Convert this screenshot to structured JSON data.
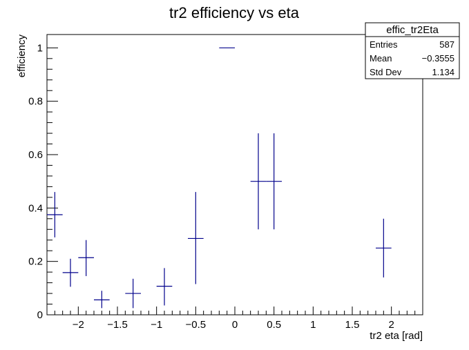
{
  "chart_data": {
    "type": "scatter",
    "title": "tr2 efficiency vs eta",
    "xlabel": "tr2 eta [rad]",
    "ylabel": "efficiency",
    "xlim": [
      -2.4,
      2.4
    ],
    "ylim": [
      0,
      1.05
    ],
    "grid": false,
    "marker_color": "#00008b",
    "x_ticks": [
      -2,
      -1.5,
      -1,
      -0.5,
      0,
      0.5,
      1,
      1.5,
      2
    ],
    "x_tick_labels": [
      "−2",
      "−1.5",
      "−1",
      "−0.5",
      "0",
      "0.5",
      "1",
      "1.5",
      "2"
    ],
    "y_ticks": [
      0,
      0.2,
      0.4,
      0.6,
      0.8,
      1
    ],
    "y_tick_labels": [
      "0",
      "0.2",
      "0.4",
      "0.6",
      "0.8",
      "1"
    ],
    "bin_half_width": 0.1,
    "points": [
      {
        "x": -2.3,
        "y": 0.375,
        "ylo": 0.29,
        "yhi": 0.46
      },
      {
        "x": -2.1,
        "y": 0.158,
        "ylo": 0.105,
        "yhi": 0.21
      },
      {
        "x": -1.9,
        "y": 0.214,
        "ylo": 0.145,
        "yhi": 0.28
      },
      {
        "x": -1.7,
        "y": 0.056,
        "ylo": 0.025,
        "yhi": 0.09
      },
      {
        "x": -1.3,
        "y": 0.08,
        "ylo": 0.025,
        "yhi": 0.135
      },
      {
        "x": -0.9,
        "y": 0.107,
        "ylo": 0.035,
        "yhi": 0.175
      },
      {
        "x": -0.5,
        "y": 0.286,
        "ylo": 0.115,
        "yhi": 0.46
      },
      {
        "x": -0.1,
        "y": 1.0,
        "ylo": 1.0,
        "yhi": 1.0
      },
      {
        "x": 0.3,
        "y": 0.5,
        "ylo": 0.32,
        "yhi": 0.68
      },
      {
        "x": 0.5,
        "y": 0.5,
        "ylo": 0.32,
        "yhi": 0.68
      },
      {
        "x": 1.9,
        "y": 0.25,
        "ylo": 0.14,
        "yhi": 0.36
      }
    ],
    "stats_box": {
      "name": "effic_tr2Eta",
      "rows": [
        {
          "label": "Entries",
          "value": "587"
        },
        {
          "label": "Mean",
          "value": "−0.3555"
        },
        {
          "label": "Std Dev",
          "value": "1.134"
        }
      ]
    }
  }
}
